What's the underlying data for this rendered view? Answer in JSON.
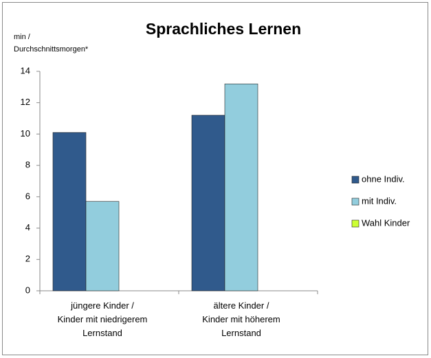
{
  "chart_data": {
    "type": "bar",
    "title": "Sprachliches Lernen",
    "y_label": "min /\nDurchschnittsmorgen*",
    "categories": [
      "jüngere Kinder /\nKinder mit niedrigerem\nLernstand",
      "ältere Kinder /\nKinder mit höherem\nLernstand"
    ],
    "series": [
      {
        "name": "ohne Indiv.",
        "color": "#305a8c",
        "values": [
          10.1,
          11.2
        ]
      },
      {
        "name": "mit Indiv.",
        "color": "#92cddd",
        "values": [
          5.7,
          13.2
        ]
      },
      {
        "name": "Wahl Kinder",
        "color": "#ccff33",
        "values": [
          null,
          null
        ]
      }
    ],
    "ylim": [
      0,
      14
    ],
    "yticks": [
      0,
      2,
      4,
      6,
      8,
      10,
      12,
      14
    ],
    "grid": false,
    "legend": "right"
  }
}
